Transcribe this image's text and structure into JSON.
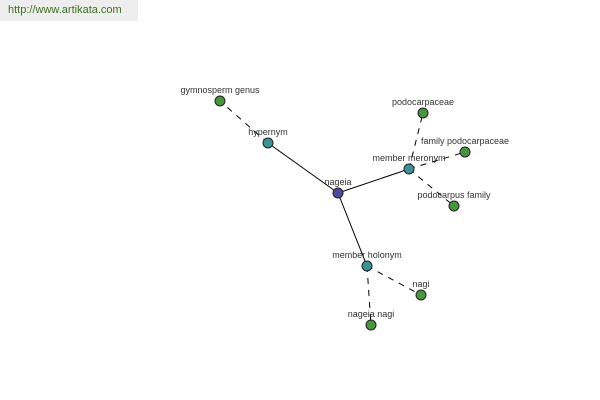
{
  "banner": {
    "url": "http://www.artikata.com"
  },
  "colors": {
    "center": "#4b4b9b",
    "relation": "#3d9393",
    "term": "#4a9540"
  },
  "graph": {
    "nodes": [
      {
        "id": "nageia",
        "label": "nageia",
        "kind": "center"
      },
      {
        "id": "hypernym",
        "label": "hypernym",
        "kind": "relation"
      },
      {
        "id": "gymnosperm",
        "label": "gymnosperm genus",
        "kind": "term"
      },
      {
        "id": "meronym",
        "label": "member meronym",
        "kind": "relation"
      },
      {
        "id": "podocarpaceae",
        "label": "podocarpaceae",
        "kind": "term"
      },
      {
        "id": "famPodo",
        "label": "family podocarpaceae",
        "kind": "term"
      },
      {
        "id": "podoFam",
        "label": "podocarpus family",
        "kind": "term"
      },
      {
        "id": "holonym",
        "label": "member holonym",
        "kind": "relation"
      },
      {
        "id": "nagi",
        "label": "nagi",
        "kind": "term"
      },
      {
        "id": "nageiaNagi",
        "label": "nageia nagi",
        "kind": "term"
      }
    ],
    "edges": [
      {
        "from": "nageia",
        "to": "hypernym",
        "style": "solid"
      },
      {
        "from": "nageia",
        "to": "meronym",
        "style": "solid"
      },
      {
        "from": "nageia",
        "to": "holonym",
        "style": "solid"
      },
      {
        "from": "hypernym",
        "to": "gymnosperm",
        "style": "dashed"
      },
      {
        "from": "meronym",
        "to": "podocarpaceae",
        "style": "dashed"
      },
      {
        "from": "meronym",
        "to": "famPodo",
        "style": "dashed"
      },
      {
        "from": "meronym",
        "to": "podoFam",
        "style": "dashed"
      },
      {
        "from": "holonym",
        "to": "nagi",
        "style": "dashed"
      },
      {
        "from": "holonym",
        "to": "nageiaNagi",
        "style": "dashed"
      }
    ]
  }
}
